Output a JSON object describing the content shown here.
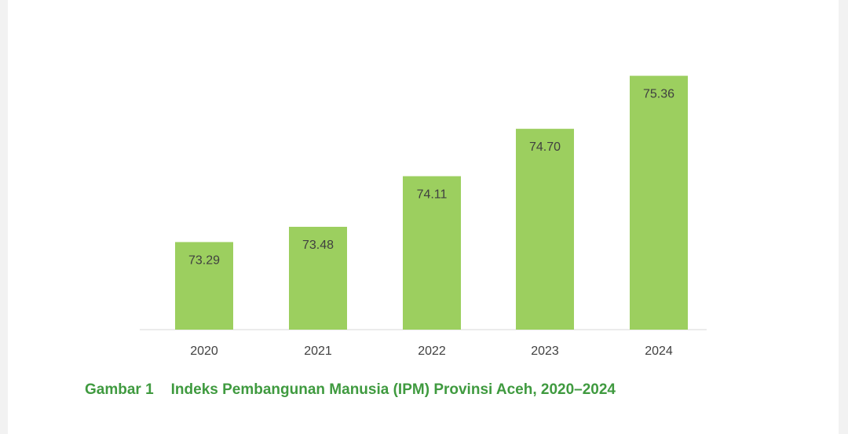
{
  "colors": {
    "bar": "#9ccf5f",
    "axis": "#d9d9d9",
    "label": "#404040",
    "caption": "#3f9a3f"
  },
  "caption": {
    "number": "Gambar 1",
    "text": "Indeks Pembangunan Manusia (IPM) Provinsi Aceh, 2020–2024"
  },
  "chart_data": {
    "type": "bar",
    "categories": [
      "2020",
      "2021",
      "2022",
      "2023",
      "2024"
    ],
    "values": [
      73.29,
      73.48,
      74.11,
      74.7,
      75.36
    ],
    "value_labels": [
      "73.29",
      "73.48",
      "74.11",
      "74.70",
      "75.36"
    ],
    "title": "",
    "xlabel": "",
    "ylabel": "",
    "ylim": [
      72.2,
      75.6
    ],
    "grid": false,
    "legend": "none"
  }
}
